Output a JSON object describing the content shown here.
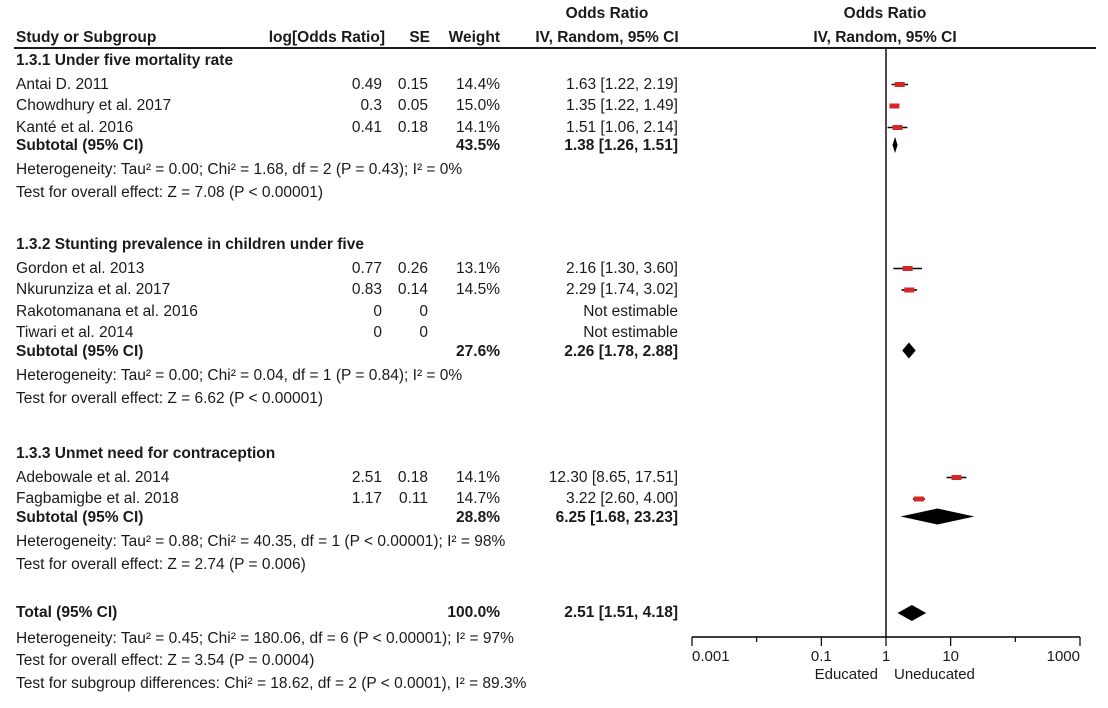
{
  "headers": {
    "study": "Study or Subgroup",
    "logor": "log[Odds Ratio]",
    "se": "SE",
    "weight": "Weight",
    "or_title": "Odds Ratio",
    "or_method": "IV, Random, 95% CI",
    "plot_title": "Odds Ratio",
    "plot_method": "IV, Random, 95% CI"
  },
  "groups": [
    {
      "title": "1.3.1 Under five mortality rate",
      "studies": [
        {
          "name": "Antai D. 2011",
          "logor": "0.49",
          "se": "0.15",
          "weight": "14.4%",
          "ci": "1.63 [1.22, 2.19]",
          "or": 1.63,
          "lo": 1.22,
          "hi": 2.19
        },
        {
          "name": "Chowdhury et al. 2017",
          "logor": "0.3",
          "se": "0.05",
          "weight": "15.0%",
          "ci": "1.35 [1.22, 1.49]",
          "or": 1.35,
          "lo": 1.22,
          "hi": 1.49
        },
        {
          "name": "Kanté et al. 2016",
          "logor": "0.41",
          "se": "0.18",
          "weight": "14.1%",
          "ci": "1.51 [1.06, 2.14]",
          "or": 1.51,
          "lo": 1.06,
          "hi": 2.14
        }
      ],
      "subtotal": {
        "label": "Subtotal (95% CI)",
        "weight": "43.5%",
        "ci": "1.38 [1.26, 1.51]",
        "or": 1.38,
        "lo": 1.26,
        "hi": 1.51
      },
      "heterogeneity": "Heterogeneity: Tau² = 0.00; Chi² = 1.68, df = 2 (P = 0.43); I² = 0%",
      "overall": "Test for overall effect: Z = 7.08 (P < 0.00001)"
    },
    {
      "title": "1.3.2 Stunting prevalence in children under five",
      "studies": [
        {
          "name": "Gordon et al. 2013",
          "logor": "0.77",
          "se": "0.26",
          "weight": "13.1%",
          "ci": "2.16 [1.30, 3.60]",
          "or": 2.16,
          "lo": 1.3,
          "hi": 3.6
        },
        {
          "name": "Nkurunziza et al. 2017",
          "logor": "0.83",
          "se": "0.14",
          "weight": "14.5%",
          "ci": "2.29 [1.74, 3.02]",
          "or": 2.29,
          "lo": 1.74,
          "hi": 3.02
        },
        {
          "name": "Rakotomanana et al. 2016",
          "logor": "0",
          "se": "0",
          "weight": "",
          "ci": "Not estimable",
          "or": null,
          "lo": null,
          "hi": null
        },
        {
          "name": "Tiwari et al. 2014",
          "logor": "0",
          "se": "0",
          "weight": "",
          "ci": "Not estimable",
          "or": null,
          "lo": null,
          "hi": null
        }
      ],
      "subtotal": {
        "label": "Subtotal (95% CI)",
        "weight": "27.6%",
        "ci": "2.26 [1.78, 2.88]",
        "or": 2.26,
        "lo": 1.78,
        "hi": 2.88
      },
      "heterogeneity": "Heterogeneity: Tau² = 0.00; Chi² = 0.04, df = 1 (P = 0.84); I² = 0%",
      "overall": "Test for overall effect: Z = 6.62 (P < 0.00001)"
    },
    {
      "title": "1.3.3 Unmet need for contraception",
      "studies": [
        {
          "name": "Adebowale et al. 2014",
          "logor": "2.51",
          "se": "0.18",
          "weight": "14.1%",
          "ci": "12.30 [8.65, 17.51]",
          "or": 12.3,
          "lo": 8.65,
          "hi": 17.51
        },
        {
          "name": "Fagbamigbe et al. 2018",
          "logor": "1.17",
          "se": "0.11",
          "weight": "14.7%",
          "ci": "3.22 [2.60, 4.00]",
          "or": 3.22,
          "lo": 2.6,
          "hi": 4.0
        }
      ],
      "subtotal": {
        "label": "Subtotal (95% CI)",
        "weight": "28.8%",
        "ci": "6.25 [1.68, 23.23]",
        "or": 6.25,
        "lo": 1.68,
        "hi": 23.23
      },
      "heterogeneity": "Heterogeneity: Tau² = 0.88; Chi² = 40.35, df = 1 (P < 0.00001); I² = 98%",
      "overall": "Test for overall effect: Z = 2.74 (P = 0.006)"
    }
  ],
  "total": {
    "label": "Total (95% CI)",
    "weight": "100.0%",
    "ci": "2.51 [1.51, 4.18]",
    "or": 2.51,
    "lo": 1.51,
    "hi": 4.18,
    "heterogeneity": "Heterogeneity: Tau² = 0.45; Chi² = 180.06, df = 6 (P < 0.00001); I² = 97%",
    "overall": "Test for overall effect: Z = 3.54 (P = 0.0004)",
    "subgroup": "Test for subgroup differences: Chi² = 18.62, df = 2 (P < 0.0001), I² = 89.3%"
  },
  "chart_data": {
    "type": "scatter",
    "title": "Odds Ratio",
    "subtitle": "IV, Random, 95% CI",
    "x_scale": "log",
    "xlim": [
      0.001,
      1000
    ],
    "x_ticks": [
      "0.001",
      "0.1",
      "1",
      "10",
      "1000"
    ],
    "x_tick_values": [
      0.001,
      0.1,
      1,
      10,
      1000
    ],
    "left_label": "Educated",
    "right_label": "Uneducated",
    "null_line": 1,
    "colors": {
      "square": "#d62728",
      "diamond": "#000000",
      "line": "#000000"
    }
  }
}
